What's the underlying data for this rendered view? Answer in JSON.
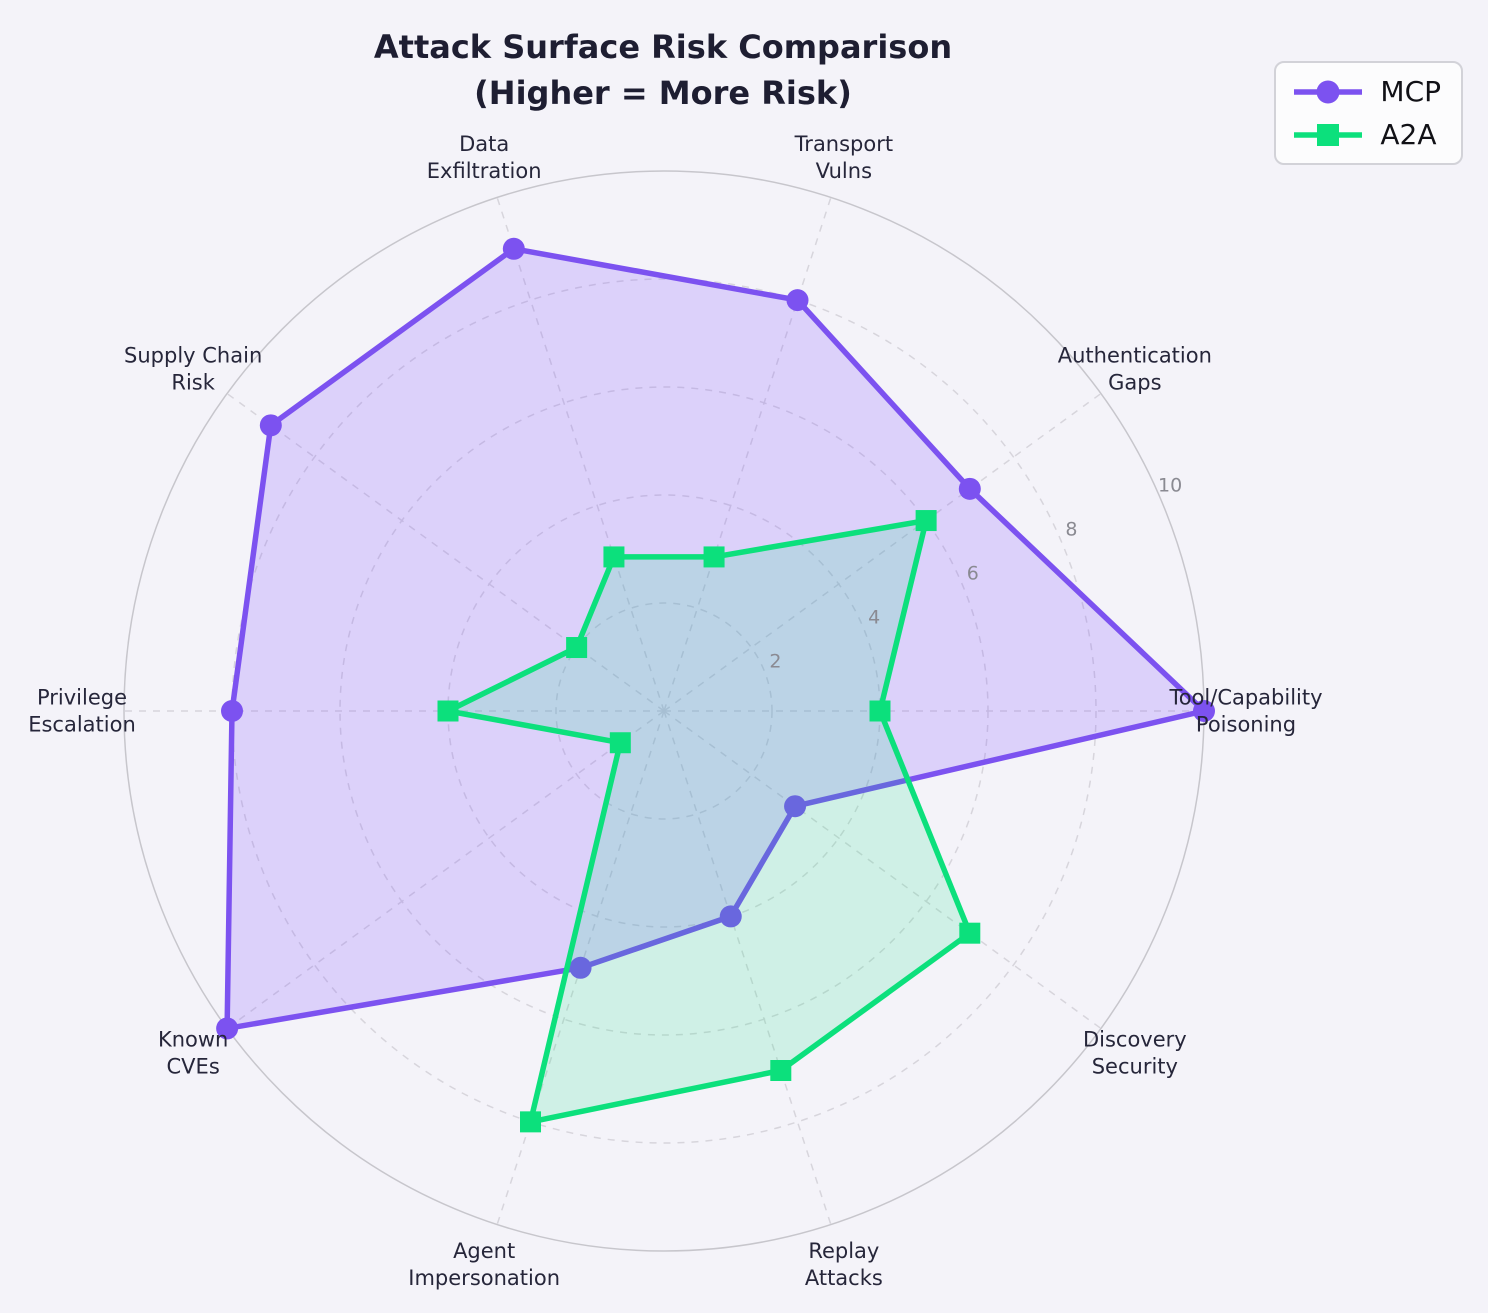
{
  "chart_data": {
    "type": "radar",
    "title": "Attack Surface Risk Comparison",
    "subtitle": "(Higher = More Risk)",
    "categories": [
      "Tool/Capability\nPoisoning",
      "Authentication\nGaps",
      "Transport\nVulns",
      "Data\nExfiltration",
      "Supply Chain\nRisk",
      "Privilege\nEscalation",
      "Known\nCVEs",
      "Agent\nImpersonation",
      "Replay\nAttacks",
      "Discovery\nSecurity"
    ],
    "series": [
      {
        "name": "MCP",
        "marker": "circle",
        "color": "#7c52f0",
        "fill_color": "rgba(124, 77, 255, 0.20)",
        "values": [
          10,
          7,
          8,
          9,
          9,
          8,
          10,
          5,
          4,
          3
        ]
      },
      {
        "name": "A2A",
        "marker": "square",
        "color": "#0ce07c",
        "fill_color": "rgba(0, 225, 120, 0.15)",
        "values": [
          4,
          6,
          3,
          3,
          2,
          4,
          1,
          8,
          7,
          7
        ]
      }
    ],
    "radial_ticks": [
      2,
      4,
      6,
      8,
      10
    ],
    "r_max": 10,
    "start_angle_deg": 0,
    "direction": "counterclockwise",
    "grid": "dashed",
    "legend_position": "top-right",
    "colors": {
      "background": "#f4f3f9",
      "grid_dashed": "#d7d5dc",
      "outer_ring": "#c7c6cc",
      "tick_label": "#8a8a92",
      "axis_label": "#26263a",
      "title": "#1e1e32"
    }
  }
}
